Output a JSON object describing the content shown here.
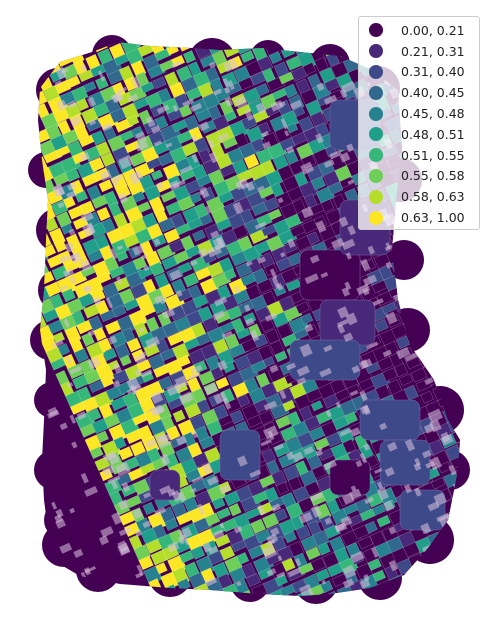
{
  "map": {
    "colormap": "viridis",
    "style": "choropleth of street-block polygons with semi-transparent building footprints",
    "boundary_color": "#440154",
    "building_overlay_color": "#d9c3df",
    "legend": {
      "placement": "top-right",
      "classes": [
        {
          "label": "0.00, 0.21",
          "min": 0.0,
          "max": 0.21,
          "color": "#440154"
        },
        {
          "label": "0.21, 0.31",
          "min": 0.21,
          "max": 0.31,
          "color": "#482878"
        },
        {
          "label": "0.31, 0.40",
          "min": 0.31,
          "max": 0.4,
          "color": "#3e4989"
        },
        {
          "label": "0.40, 0.45",
          "min": 0.4,
          "max": 0.45,
          "color": "#31688e"
        },
        {
          "label": "0.45, 0.48",
          "min": 0.45,
          "max": 0.48,
          "color": "#26828e"
        },
        {
          "label": "0.48, 0.51",
          "min": 0.48,
          "max": 0.51,
          "color": "#1f9e89"
        },
        {
          "label": "0.51, 0.55",
          "min": 0.51,
          "max": 0.55,
          "color": "#35b779"
        },
        {
          "label": "0.55, 0.58",
          "min": 0.55,
          "max": 0.58,
          "color": "#6ece58"
        },
        {
          "label": "0.58, 0.63",
          "min": 0.58,
          "max": 0.63,
          "color": "#b5de2b"
        },
        {
          "label": "0.63, 1.00",
          "min": 0.63,
          "max": 1.0,
          "color": "#fde725"
        }
      ]
    }
  }
}
